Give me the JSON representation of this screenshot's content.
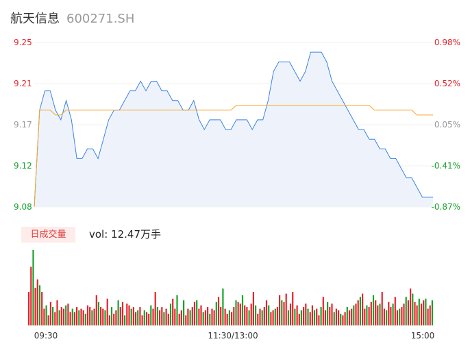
{
  "header": {
    "name": "航天信息",
    "code": "600271.SH"
  },
  "volume_panel": {
    "badge": "日成交量",
    "vol_text": "vol: 12.47万手"
  },
  "colors": {
    "up": "#e8232a",
    "down": "#16a32b",
    "flat": "#999999",
    "price_line": "#3b82e6",
    "avg_line": "#f5a623"
  },
  "chart_data": [
    {
      "type": "line",
      "name": "intraday-price",
      "y_ticks": [
        "9.25",
        "9.21",
        "9.17",
        "9.12",
        "9.08"
      ],
      "pct_ticks": [
        "0.98%",
        "0.52%",
        "0.05%",
        "-0.41%",
        "-0.87%"
      ],
      "ylim": [
        9.08,
        9.25
      ],
      "price": [
        9.08,
        9.18,
        9.2,
        9.2,
        9.18,
        9.17,
        9.19,
        9.17,
        9.13,
        9.13,
        9.14,
        9.14,
        9.13,
        9.15,
        9.17,
        9.18,
        9.18,
        9.19,
        9.2,
        9.2,
        9.21,
        9.2,
        9.21,
        9.21,
        9.2,
        9.2,
        9.19,
        9.19,
        9.18,
        9.18,
        9.19,
        9.17,
        9.16,
        9.17,
        9.17,
        9.17,
        9.16,
        9.16,
        9.17,
        9.17,
        9.17,
        9.16,
        9.17,
        9.17,
        9.19,
        9.22,
        9.23,
        9.23,
        9.23,
        9.22,
        9.21,
        9.22,
        9.24,
        9.24,
        9.24,
        9.23,
        9.21,
        9.2,
        9.19,
        9.18,
        9.17,
        9.16,
        9.16,
        9.15,
        9.15,
        9.14,
        9.14,
        9.13,
        9.13,
        9.12,
        9.11,
        9.11,
        9.1,
        9.09,
        9.09,
        9.09
      ],
      "avg": [
        9.08,
        9.18,
        9.18,
        9.18,
        9.175,
        9.175,
        9.18,
        9.18,
        9.18,
        9.18,
        9.18,
        9.18,
        9.18,
        9.18,
        9.18,
        9.18,
        9.18,
        9.18,
        9.18,
        9.18,
        9.18,
        9.18,
        9.18,
        9.18,
        9.18,
        9.18,
        9.18,
        9.18,
        9.18,
        9.18,
        9.18,
        9.18,
        9.18,
        9.18,
        9.18,
        9.18,
        9.18,
        9.18,
        9.185,
        9.185,
        9.185,
        9.185,
        9.185,
        9.185,
        9.185,
        9.185,
        9.185,
        9.185,
        9.185,
        9.185,
        9.185,
        9.185,
        9.185,
        9.185,
        9.185,
        9.185,
        9.185,
        9.185,
        9.185,
        9.185,
        9.185,
        9.185,
        9.185,
        9.185,
        9.18,
        9.18,
        9.18,
        9.18,
        9.18,
        9.18,
        9.18,
        9.18,
        9.175,
        9.175,
        9.175,
        9.175
      ],
      "x_ticks": [
        "09:30",
        "11:30/13:00",
        "15:00"
      ]
    },
    {
      "type": "bar",
      "name": "volume",
      "values": [
        40,
        70,
        90,
        45,
        55,
        48,
        40,
        20,
        24,
        12,
        28,
        22,
        16,
        30,
        18,
        22,
        20,
        24,
        26,
        16,
        20,
        16,
        22,
        18,
        20,
        18,
        14,
        24,
        22,
        18,
        20,
        36,
        28,
        22,
        20,
        18,
        32,
        12,
        22,
        14,
        18,
        30,
        22,
        28,
        12,
        26,
        24,
        20,
        22,
        16,
        18,
        22,
        12,
        18,
        16,
        14,
        24,
        20,
        40,
        22,
        18,
        22,
        16,
        20,
        14,
        26,
        32,
        20,
        36,
        14,
        18,
        30,
        12,
        20,
        18,
        22,
        28,
        30,
        20,
        24,
        16,
        18,
        22,
        14,
        20,
        18,
        28,
        34,
        22,
        44,
        20,
        14,
        18,
        16,
        22,
        30,
        28,
        26,
        36,
        24,
        22,
        18,
        26,
        40,
        24,
        14,
        20,
        18,
        22,
        30,
        24,
        16,
        18,
        20,
        22,
        36,
        30,
        28,
        38,
        18,
        26,
        40,
        20,
        24,
        14,
        18,
        22,
        26,
        20,
        16,
        24,
        18,
        20,
        12,
        22,
        34,
        18,
        28,
        22,
        26,
        16,
        20,
        18,
        14,
        12,
        16,
        22,
        18,
        20,
        24,
        26,
        30,
        34,
        38,
        20,
        24,
        22,
        28,
        36,
        30,
        24,
        26,
        40,
        20,
        18,
        28,
        22,
        26,
        34,
        18,
        20,
        22,
        26,
        34,
        30,
        44,
        38,
        28,
        24,
        32,
        26,
        30,
        32,
        20,
        24,
        30
      ],
      "colors": "rg"
    }
  ]
}
